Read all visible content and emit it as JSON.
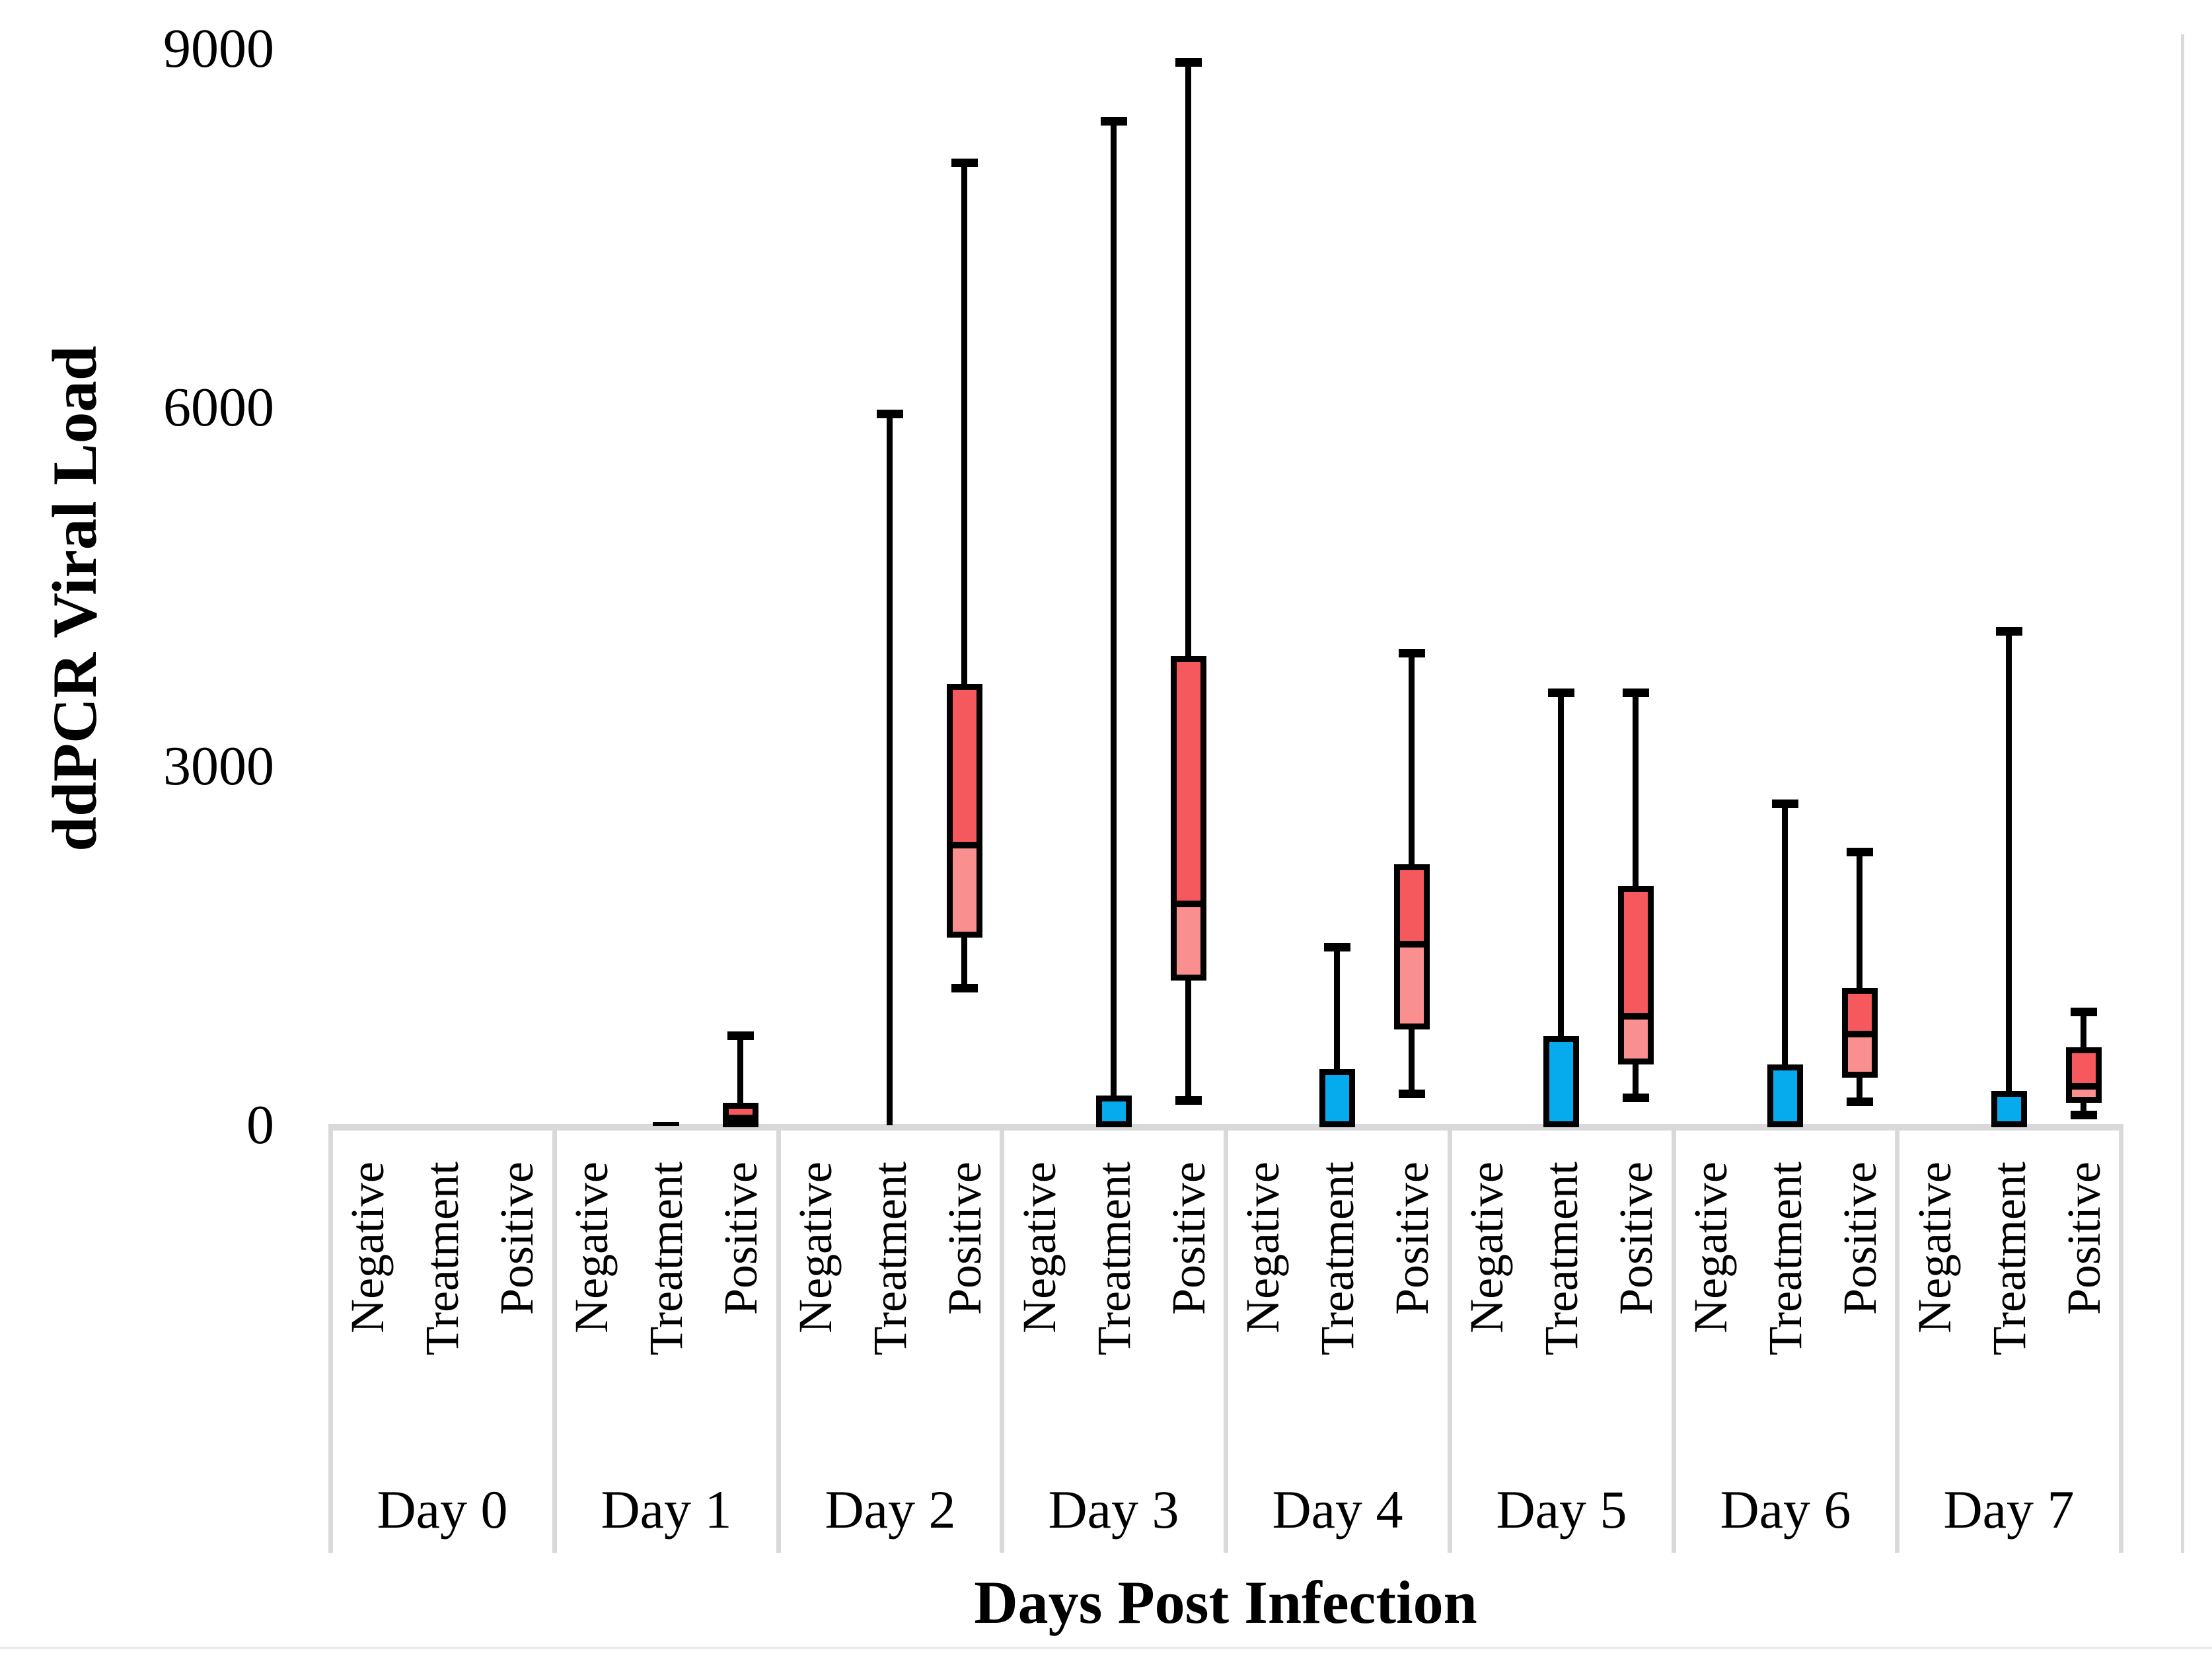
{
  "chart_data": {
    "type": "box",
    "title": "",
    "xlabel": "Days Post Infection",
    "ylabel": "ddPCR Viral Load",
    "ylim": [
      0,
      9000
    ],
    "yticks": [
      0,
      3000,
      6000,
      9000
    ],
    "grid": false,
    "legend_position": "none",
    "categories": [
      "Negative",
      "Treatment",
      "Positive"
    ],
    "days": [
      {
        "label": "Day 0",
        "negative": null,
        "treatment": null,
        "positive": null
      },
      {
        "label": "Day 1",
        "negative": null,
        "treatment": {
          "flat_median": 10
        },
        "positive": {
          "min": 0,
          "q1": 20,
          "median": 80,
          "q3": 190,
          "max": 750
        }
      },
      {
        "label": "Day 2",
        "negative": null,
        "treatment": {
          "min": 0,
          "q1": 0,
          "median": 0,
          "q3": 0,
          "max": 5950
        },
        "positive": {
          "min": 1150,
          "q1": 1570,
          "median": 2360,
          "q3": 3690,
          "max": 8050
        }
      },
      {
        "label": "Day 3",
        "negative": null,
        "treatment": {
          "min": 0,
          "q1": 0,
          "median": 0,
          "q3": 250,
          "max": 8400
        },
        "positive": {
          "min": 210,
          "q1": 1210,
          "median": 1870,
          "q3": 3920,
          "max": 8890
        }
      },
      {
        "label": "Day 4",
        "negative": null,
        "treatment": {
          "min": 0,
          "q1": 0,
          "median": 0,
          "q3": 470,
          "max": 1490
        },
        "positive": {
          "min": 265,
          "q1": 800,
          "median": 1530,
          "q3": 2180,
          "max": 3950
        }
      },
      {
        "label": "Day 5",
        "negative": null,
        "treatment": {
          "min": 0,
          "q1": 0,
          "median": 0,
          "q3": 745,
          "max": 3620
        },
        "positive": {
          "min": 230,
          "q1": 510,
          "median": 930,
          "q3": 2000,
          "max": 3620
        }
      },
      {
        "label": "Day 6",
        "negative": null,
        "treatment": {
          "min": 0,
          "q1": 0,
          "median": 0,
          "q3": 510,
          "max": 2690
        },
        "positive": {
          "min": 200,
          "q1": 400,
          "median": 780,
          "q3": 1150,
          "max": 2290
        }
      },
      {
        "label": "Day 7",
        "negative": null,
        "treatment": {
          "min": 0,
          "q1": 0,
          "median": 0,
          "q3": 285,
          "max": 4130
        },
        "positive": {
          "min": 90,
          "q1": 190,
          "median": 345,
          "q3": 650,
          "max": 950
        }
      }
    ],
    "colors": {
      "treatment_box": "#05ABED",
      "positive_box_upper": "#F6595D",
      "positive_box_lower": "#F9908F",
      "box_border": "#000000",
      "axis_line": "#D9D9D9",
      "page_rule": "#EBEBEB"
    }
  }
}
